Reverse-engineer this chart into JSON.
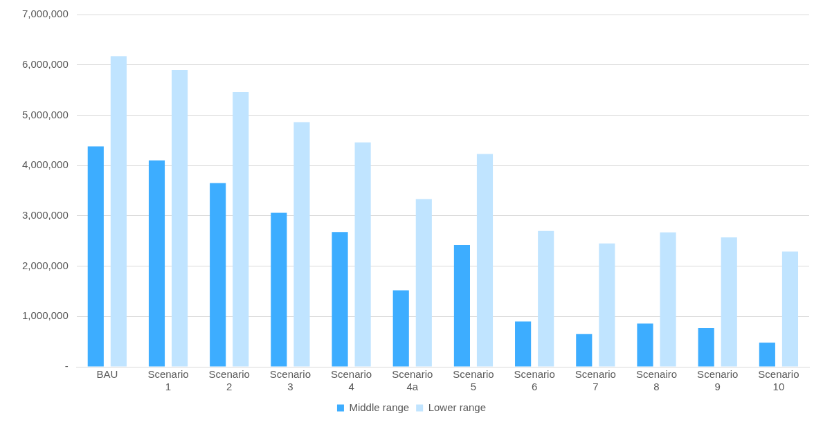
{
  "chart_data": {
    "type": "bar",
    "categories": [
      "BAU",
      "Scenario 1",
      "Scenario 2",
      "Scenario 3",
      "Scenario 4",
      "Scenario 4a",
      "Scenario 5",
      "Scenario 6",
      "Scenario 7",
      "Scenairo 8",
      "Scenario 9",
      "Scenario 10"
    ],
    "series": [
      {
        "name": "Middle range",
        "color": "#3dadff",
        "values": [
          4380000,
          4100000,
          3650000,
          3060000,
          2680000,
          1520000,
          2420000,
          900000,
          650000,
          860000,
          770000,
          480000
        ]
      },
      {
        "name": "Lower range",
        "color": "#c0e4ff",
        "values": [
          6170000,
          5900000,
          5460000,
          4860000,
          4460000,
          3330000,
          4230000,
          2700000,
          2450000,
          2670000,
          2570000,
          2290000
        ]
      }
    ],
    "ylim": [
      0,
      7000000
    ],
    "yticks": [
      {
        "value": 0,
        "label": "-"
      },
      {
        "value": 1000000,
        "label": "1,000,000"
      },
      {
        "value": 2000000,
        "label": "2,000,000"
      },
      {
        "value": 3000000,
        "label": "3,000,000"
      },
      {
        "value": 4000000,
        "label": "4,000,000"
      },
      {
        "value": 5000000,
        "label": "5,000,000"
      },
      {
        "value": 6000000,
        "label": "6,000,000"
      },
      {
        "value": 7000000,
        "label": "7,000,000"
      }
    ],
    "grid": "y",
    "legend": "bottom"
  }
}
